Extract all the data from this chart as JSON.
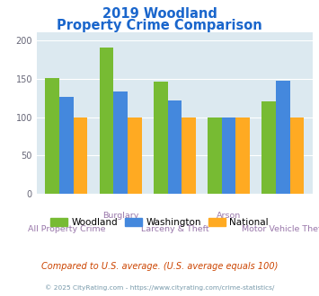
{
  "title_line1": "2019 Woodland",
  "title_line2": "Property Crime Comparison",
  "title_color": "#1a66cc",
  "categories": [
    "All Property Crime",
    "Burglary",
    "Larceny & Theft",
    "Arson",
    "Motor Vehicle Theft"
  ],
  "cat_line1": [
    "",
    "Burglary",
    "",
    "Arson",
    ""
  ],
  "cat_line2": [
    "All Property Crime",
    "",
    "Larceny & Theft",
    "",
    "Motor Vehicle Theft"
  ],
  "woodland": [
    151,
    191,
    146,
    100,
    120
  ],
  "washington": [
    126,
    133,
    122,
    100,
    147
  ],
  "national": [
    100,
    100,
    100,
    100,
    100
  ],
  "woodland_color": "#77bb33",
  "washington_color": "#4488dd",
  "national_color": "#ffaa22",
  "ylim": [
    0,
    210
  ],
  "yticks": [
    0,
    50,
    100,
    150,
    200
  ],
  "plot_bg": "#dce9f0",
  "legend_labels": [
    "Woodland",
    "Washington",
    "National"
  ],
  "footnote1": "Compared to U.S. average. (U.S. average equals 100)",
  "footnote2": "© 2025 CityRating.com - https://www.cityrating.com/crime-statistics/",
  "footnote1_color": "#cc4400",
  "footnote2_color": "#7799aa"
}
